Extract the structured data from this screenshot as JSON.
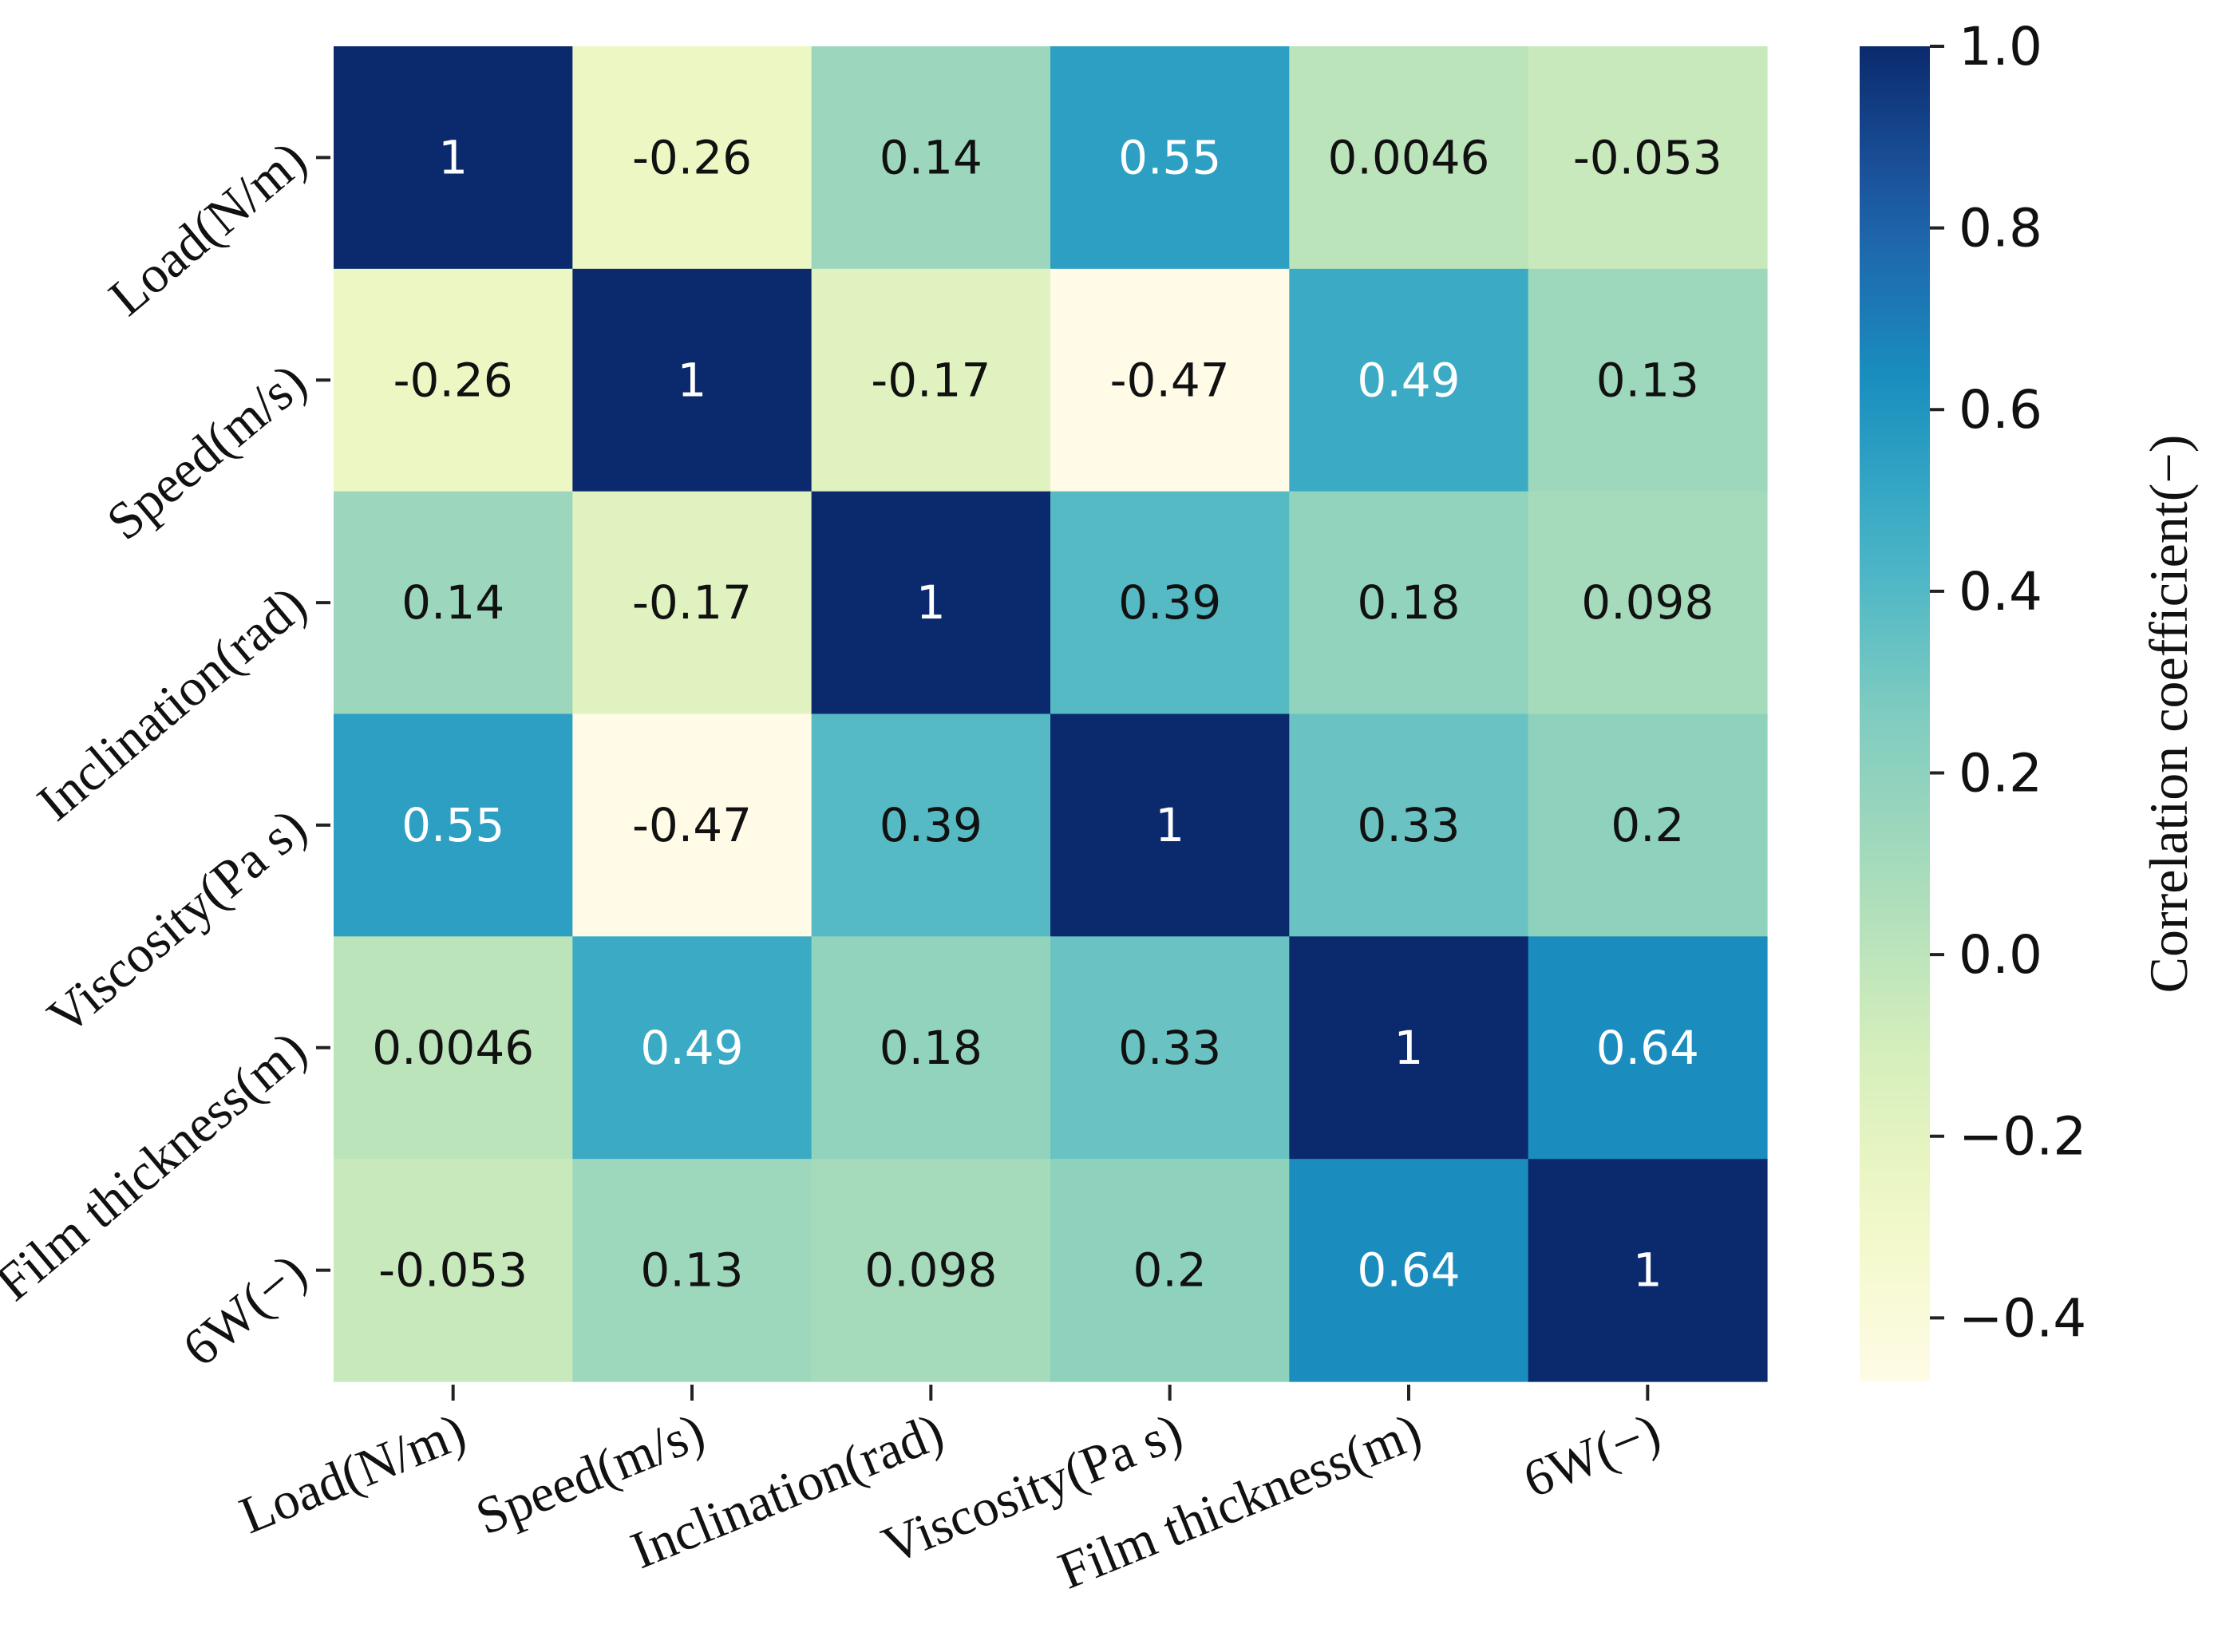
{
  "chart_data": {
    "type": "heatmap",
    "title": "",
    "xlabel": "",
    "ylabel": "",
    "categories": [
      "Load(N/m)",
      "Speed(m/s)",
      "Inclination(rad)",
      "Viscosity(Pa s)",
      "Film thickness(m)",
      "6W(−)"
    ],
    "row_labels": [
      "Load(N/m)",
      "Speed(m/s)",
      "Inclination(rad)",
      "Viscosity(Pa s)",
      "Film thickness(m)",
      "6W(−)"
    ],
    "matrix": [
      [
        1,
        -0.26,
        0.14,
        0.55,
        0.0046,
        -0.053
      ],
      [
        -0.26,
        1,
        -0.17,
        -0.47,
        0.49,
        0.13
      ],
      [
        0.14,
        -0.17,
        1,
        0.39,
        0.18,
        0.098
      ],
      [
        0.55,
        -0.47,
        0.39,
        1,
        0.33,
        0.2
      ],
      [
        0.0046,
        0.49,
        0.18,
        0.33,
        1,
        0.64
      ],
      [
        -0.053,
        0.13,
        0.098,
        0.2,
        0.64,
        1
      ]
    ],
    "cell_labels": [
      [
        "1",
        "-0.26",
        "0.14",
        "0.55",
        "0.0046",
        "-0.053"
      ],
      [
        "-0.26",
        "1",
        "-0.17",
        "-0.47",
        "0.49",
        "0.13"
      ],
      [
        "0.14",
        "-0.17",
        "1",
        "0.39",
        "0.18",
        "0.098"
      ],
      [
        "0.55",
        "-0.47",
        "0.39",
        "1",
        "0.33",
        "0.2"
      ],
      [
        "0.0046",
        "0.49",
        "0.18",
        "0.33",
        "1",
        "0.64"
      ],
      [
        "-0.053",
        "0.13",
        "0.098",
        "0.2",
        "0.64",
        "1"
      ]
    ],
    "colorbar": {
      "label": "Correlation coefficient(−)",
      "range": [
        -0.47,
        1.0
      ],
      "ticks": [
        1.0,
        0.8,
        0.6,
        0.4,
        0.2,
        0.0,
        -0.2,
        -0.4
      ],
      "tick_labels": [
        "1.0",
        "0.8",
        "0.6",
        "0.4",
        "0.2",
        "0.0",
        "−0.2",
        "−0.4"
      ],
      "colormap": "YlGnBu"
    }
  }
}
